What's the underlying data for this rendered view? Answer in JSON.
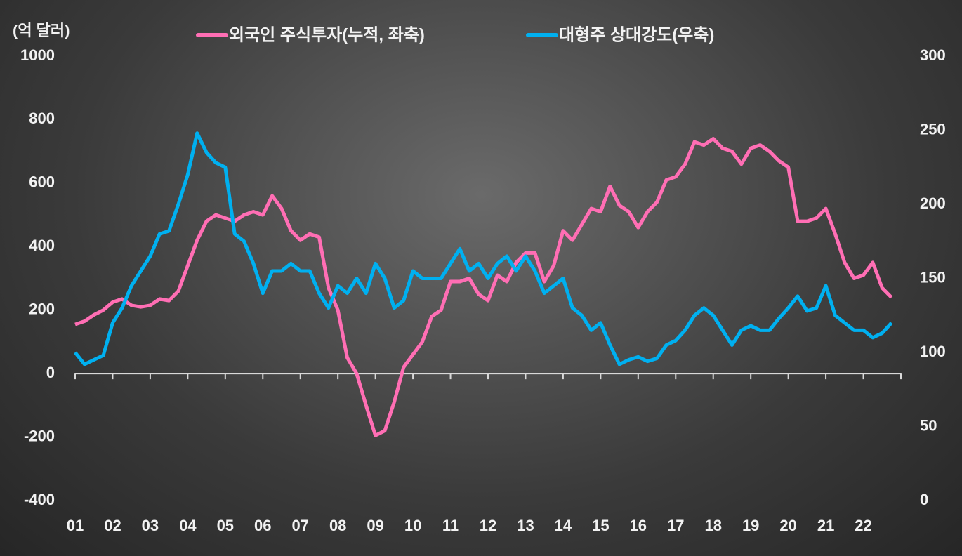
{
  "chart_data": {
    "type": "line",
    "y_label": "(억 달러)",
    "x": [
      2001,
      2001.25,
      2001.5,
      2001.75,
      2002,
      2002.25,
      2002.5,
      2002.75,
      2003,
      2003.25,
      2003.5,
      2003.75,
      2004,
      2004.25,
      2004.5,
      2004.75,
      2005,
      2005.25,
      2005.5,
      2005.75,
      2006,
      2006.25,
      2006.5,
      2006.75,
      2007,
      2007.25,
      2007.5,
      2007.75,
      2008,
      2008.25,
      2008.5,
      2008.75,
      2009,
      2009.25,
      2009.5,
      2009.75,
      2010,
      2010.25,
      2010.5,
      2010.75,
      2011,
      2011.25,
      2011.5,
      2011.75,
      2012,
      2012.25,
      2012.5,
      2012.75,
      2013,
      2013.25,
      2013.5,
      2013.75,
      2014,
      2014.25,
      2014.5,
      2014.75,
      2015,
      2015.25,
      2015.5,
      2015.75,
      2016,
      2016.25,
      2016.5,
      2016.75,
      2017,
      2017.25,
      2017.5,
      2017.75,
      2018,
      2018.25,
      2018.5,
      2018.75,
      2019,
      2019.25,
      2019.5,
      2019.75,
      2020,
      2020.25,
      2020.5,
      2020.75,
      2021,
      2021.25,
      2021.5,
      2021.75,
      2022,
      2022.25,
      2022.5,
      2022.75
    ],
    "series": [
      {
        "name": "외국인 주식투자(누적, 좌축)",
        "color": "#ff6eb4",
        "axis": "y",
        "values": [
          155,
          165,
          185,
          200,
          225,
          235,
          215,
          210,
          215,
          235,
          230,
          260,
          340,
          420,
          480,
          500,
          490,
          480,
          500,
          510,
          500,
          560,
          520,
          450,
          420,
          440,
          430,
          270,
          200,
          50,
          0,
          -100,
          -195,
          -180,
          -90,
          20,
          60,
          100,
          180,
          200,
          290,
          290,
          300,
          250,
          230,
          310,
          290,
          350,
          380,
          380,
          290,
          340,
          450,
          420,
          470,
          520,
          510,
          590,
          530,
          510,
          460,
          510,
          540,
          610,
          620,
          660,
          730,
          720,
          740,
          710,
          700,
          660,
          710,
          720,
          700,
          670,
          650,
          480,
          480,
          490,
          520,
          440,
          350,
          300,
          310,
          350,
          270,
          240
        ]
      },
      {
        "name": "대형주 상대강도(우축)",
        "color": "#00b0f0",
        "axis": "y2",
        "values": [
          100,
          92,
          95,
          98,
          120,
          130,
          145,
          155,
          165,
          180,
          182,
          200,
          220,
          248,
          235,
          228,
          225,
          180,
          175,
          160,
          140,
          155,
          155,
          160,
          155,
          155,
          140,
          130,
          145,
          140,
          150,
          140,
          160,
          150,
          130,
          135,
          155,
          150,
          150,
          150,
          160,
          170,
          155,
          160,
          150,
          160,
          165,
          155,
          165,
          155,
          140,
          145,
          150,
          130,
          125,
          115,
          120,
          105,
          92,
          95,
          97,
          94,
          96,
          105,
          108,
          115,
          125,
          130,
          125,
          115,
          105,
          115,
          118,
          115,
          115,
          123,
          130,
          138,
          128,
          130,
          145,
          125,
          120,
          115,
          115,
          110,
          113,
          120
        ]
      }
    ],
    "xlim": [
      2001,
      2023
    ],
    "xticks": [
      {
        "value": 2001,
        "label": "01"
      },
      {
        "value": 2002,
        "label": "02"
      },
      {
        "value": 2003,
        "label": "03"
      },
      {
        "value": 2004,
        "label": "04"
      },
      {
        "value": 2005,
        "label": "05"
      },
      {
        "value": 2006,
        "label": "06"
      },
      {
        "value": 2007,
        "label": "07"
      },
      {
        "value": 2008,
        "label": "08"
      },
      {
        "value": 2009,
        "label": "09"
      },
      {
        "value": 2010,
        "label": "10"
      },
      {
        "value": 2011,
        "label": "11"
      },
      {
        "value": 2012,
        "label": "12"
      },
      {
        "value": 2013,
        "label": "13"
      },
      {
        "value": 2014,
        "label": "14"
      },
      {
        "value": 2015,
        "label": "15"
      },
      {
        "value": 2016,
        "label": "16"
      },
      {
        "value": 2017,
        "label": "17"
      },
      {
        "value": 2018,
        "label": "18"
      },
      {
        "value": 2019,
        "label": "19"
      },
      {
        "value": 2020,
        "label": "20"
      },
      {
        "value": 2021,
        "label": "21"
      },
      {
        "value": 2022,
        "label": "22"
      }
    ],
    "ylim": [
      -400,
      1000
    ],
    "yticks": [
      -400,
      -200,
      0,
      200,
      400,
      600,
      800,
      1000
    ],
    "y2lim": [
      0,
      300
    ],
    "y2ticks": [
      0,
      50,
      100,
      150,
      200,
      250,
      300
    ],
    "legend": "top"
  }
}
